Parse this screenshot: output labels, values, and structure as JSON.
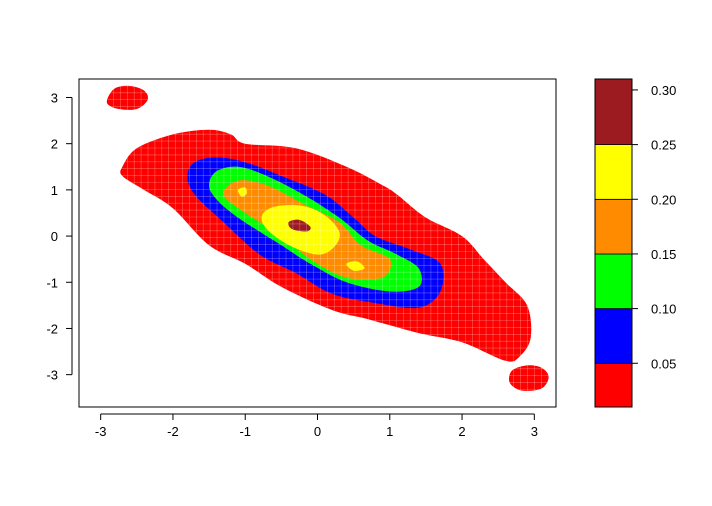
{
  "chart_data": {
    "type": "heatmap",
    "subtype": "filled-contour",
    "title": "",
    "xlabel": "",
    "ylabel": "",
    "xlim": [
      -3.3,
      3.3
    ],
    "ylim": [
      -3.7,
      3.4
    ],
    "x_ticks": [
      {
        "value": -3,
        "label": "-3"
      },
      {
        "value": -2,
        "label": "-2"
      },
      {
        "value": -1,
        "label": "-1"
      },
      {
        "value": 0,
        "label": "0"
      },
      {
        "value": 1,
        "label": "1"
      },
      {
        "value": 2,
        "label": "2"
      },
      {
        "value": 3,
        "label": "3"
      }
    ],
    "y_ticks": [
      {
        "value": -3,
        "label": "-3"
      },
      {
        "value": -2,
        "label": "-2"
      },
      {
        "value": -1,
        "label": "-1"
      },
      {
        "value": 0,
        "label": "0"
      },
      {
        "value": 1,
        "label": "1"
      },
      {
        "value": 2,
        "label": "2"
      },
      {
        "value": 3,
        "label": "3"
      }
    ],
    "levels": [
      0.01,
      0.05,
      0.1,
      0.15,
      0.2,
      0.25,
      0.31
    ],
    "level_colors": [
      "#ff0000",
      "#0000ff",
      "#00ff00",
      "#ff8c00",
      "#ffff00",
      "#9b1b20"
    ],
    "legend": {
      "placement": "right",
      "tick_labels": [
        {
          "value": 0.05,
          "label": "0.05"
        },
        {
          "value": 0.1,
          "label": "0.10"
        },
        {
          "value": 0.15,
          "label": "0.15"
        },
        {
          "value": 0.2,
          "label": "0.20"
        },
        {
          "value": 0.25,
          "label": "0.25"
        },
        {
          "value": 0.3,
          "label": "0.30"
        }
      ]
    },
    "grid": true,
    "regions": [
      {
        "level": 0,
        "name": "band-0-05",
        "points": [
          [
            -2.7,
            1.5
          ],
          [
            -2.5,
            1.9
          ],
          [
            -2.0,
            2.2
          ],
          [
            -1.5,
            2.3
          ],
          [
            -1.2,
            2.2
          ],
          [
            -1.0,
            2.0
          ],
          [
            -0.3,
            1.9
          ],
          [
            0.4,
            1.5
          ],
          [
            0.9,
            1.1
          ],
          [
            1.1,
            0.9
          ],
          [
            1.5,
            0.4
          ],
          [
            2.0,
            0.0
          ],
          [
            2.3,
            -0.5
          ],
          [
            2.6,
            -1.0
          ],
          [
            2.9,
            -1.5
          ],
          [
            2.95,
            -2.2
          ],
          [
            2.8,
            -2.6
          ],
          [
            2.6,
            -2.7
          ],
          [
            2.0,
            -2.3
          ],
          [
            1.4,
            -2.1
          ],
          [
            0.7,
            -1.8
          ],
          [
            0.2,
            -1.6
          ],
          [
            -0.5,
            -1.1
          ],
          [
            -1.0,
            -0.6
          ],
          [
            -1.5,
            -0.2
          ],
          [
            -2.0,
            0.6
          ],
          [
            -2.4,
            1.0
          ],
          [
            -2.7,
            1.3
          ]
        ]
      },
      {
        "level": 0,
        "name": "island-top-left",
        "points": [
          [
            -2.9,
            3.0
          ],
          [
            -2.8,
            3.2
          ],
          [
            -2.6,
            3.25
          ],
          [
            -2.4,
            3.15
          ],
          [
            -2.35,
            2.95
          ],
          [
            -2.5,
            2.75
          ],
          [
            -2.75,
            2.75
          ],
          [
            -2.9,
            2.85
          ]
        ]
      },
      {
        "level": 0,
        "name": "island-bottom-right",
        "points": [
          [
            2.65,
            -3.1
          ],
          [
            2.7,
            -2.9
          ],
          [
            2.9,
            -2.8
          ],
          [
            3.1,
            -2.85
          ],
          [
            3.2,
            -3.05
          ],
          [
            3.1,
            -3.3
          ],
          [
            2.85,
            -3.35
          ],
          [
            2.7,
            -3.25
          ]
        ]
      },
      {
        "level": 1,
        "name": "band-0-10",
        "points": [
          [
            -1.8,
            1.3
          ],
          [
            -1.7,
            1.6
          ],
          [
            -1.4,
            1.7
          ],
          [
            -1.0,
            1.6
          ],
          [
            -0.5,
            1.3
          ],
          [
            0.1,
            0.9
          ],
          [
            0.5,
            0.4
          ],
          [
            0.8,
            0.0
          ],
          [
            1.3,
            -0.3
          ],
          [
            1.7,
            -0.6
          ],
          [
            1.7,
            -1.2
          ],
          [
            1.4,
            -1.55
          ],
          [
            0.8,
            -1.45
          ],
          [
            0.2,
            -1.25
          ],
          [
            -0.3,
            -0.8
          ],
          [
            -0.8,
            -0.4
          ],
          [
            -1.3,
            0.3
          ],
          [
            -1.7,
            0.9
          ]
        ]
      },
      {
        "level": 2,
        "name": "band-0-15",
        "points": [
          [
            -1.5,
            1.1
          ],
          [
            -1.4,
            1.4
          ],
          [
            -1.1,
            1.5
          ],
          [
            -0.7,
            1.3
          ],
          [
            -0.2,
            0.9
          ],
          [
            0.3,
            0.4
          ],
          [
            0.7,
            -0.1
          ],
          [
            1.1,
            -0.4
          ],
          [
            1.4,
            -0.7
          ],
          [
            1.4,
            -1.1
          ],
          [
            1.0,
            -1.2
          ],
          [
            0.4,
            -1.0
          ],
          [
            -0.1,
            -0.6
          ],
          [
            -0.5,
            -0.2
          ],
          [
            -1.1,
            0.4
          ],
          [
            -1.4,
            0.8
          ]
        ]
      },
      {
        "level": 3,
        "name": "band-0-20",
        "points": [
          [
            -1.3,
            0.9
          ],
          [
            -1.1,
            1.2
          ],
          [
            -0.7,
            1.1
          ],
          [
            -0.2,
            0.7
          ],
          [
            0.3,
            0.3
          ],
          [
            0.6,
            -0.2
          ],
          [
            1.0,
            -0.5
          ],
          [
            0.9,
            -0.9
          ],
          [
            0.4,
            -0.9
          ],
          [
            -0.1,
            -0.5
          ],
          [
            -0.5,
            0.0
          ],
          [
            -1.0,
            0.5
          ]
        ]
      },
      {
        "level": 4,
        "name": "band-0-25",
        "points": [
          [
            -0.75,
            0.5
          ],
          [
            -0.55,
            0.65
          ],
          [
            -0.2,
            0.65
          ],
          [
            0.1,
            0.45
          ],
          [
            0.3,
            0.1
          ],
          [
            0.25,
            -0.2
          ],
          [
            0.05,
            -0.4
          ],
          [
            -0.25,
            -0.3
          ],
          [
            -0.55,
            -0.05
          ],
          [
            -0.75,
            0.25
          ]
        ]
      },
      {
        "level": 4,
        "name": "speck-left",
        "points": [
          [
            -1.1,
            1.0
          ],
          [
            -1.0,
            1.05
          ],
          [
            -0.98,
            0.92
          ],
          [
            -1.05,
            0.85
          ]
        ]
      },
      {
        "level": 4,
        "name": "speck-right",
        "points": [
          [
            0.4,
            -0.6
          ],
          [
            0.55,
            -0.55
          ],
          [
            0.65,
            -0.7
          ],
          [
            0.5,
            -0.75
          ]
        ]
      },
      {
        "level": 5,
        "name": "band-0-30",
        "points": [
          [
            -0.4,
            0.3
          ],
          [
            -0.25,
            0.35
          ],
          [
            -0.1,
            0.2
          ],
          [
            -0.15,
            0.1
          ],
          [
            -0.35,
            0.15
          ]
        ]
      }
    ]
  }
}
